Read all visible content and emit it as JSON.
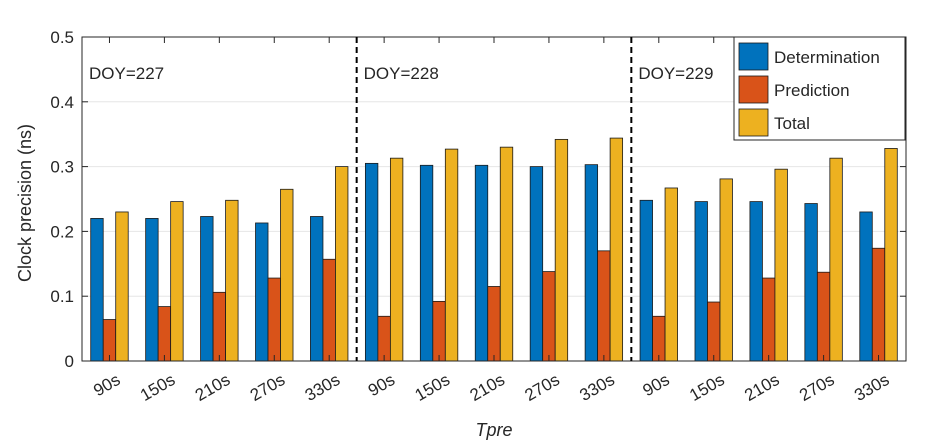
{
  "chart_data": {
    "type": "bar",
    "xlabel": "Tpre",
    "ylabel": "Clock precision (ns)",
    "ylim": [
      0,
      0.5
    ],
    "yticks": [
      "0",
      "0.1",
      "0.2",
      "0.3",
      "0.4",
      "0.5"
    ],
    "categories": [
      "90s",
      "150s",
      "210s",
      "270s",
      "330s",
      "90s",
      "150s",
      "210s",
      "270s",
      "330s",
      "90s",
      "150s",
      "210s",
      "270s",
      "330s"
    ],
    "groups": [
      {
        "label": "DOY=227"
      },
      {
        "label": "DOY=228"
      },
      {
        "label": "DOY=229"
      }
    ],
    "series": [
      {
        "name": "Determination",
        "color": "#0072BD",
        "values": [
          0.22,
          0.22,
          0.223,
          0.213,
          0.223,
          0.305,
          0.302,
          0.302,
          0.3,
          0.303,
          0.248,
          0.246,
          0.246,
          0.243,
          0.23
        ]
      },
      {
        "name": "Prediction",
        "color": "#D95319",
        "values": [
          0.064,
          0.084,
          0.106,
          0.128,
          0.157,
          0.069,
          0.092,
          0.115,
          0.138,
          0.17,
          0.069,
          0.091,
          0.128,
          0.137,
          0.174
        ]
      },
      {
        "name": "Total",
        "color": "#EDB120",
        "values": [
          0.23,
          0.246,
          0.248,
          0.265,
          0.3,
          0.313,
          0.327,
          0.33,
          0.342,
          0.344,
          0.267,
          0.281,
          0.296,
          0.313,
          0.328
        ]
      }
    ],
    "grid": true,
    "legend_position": "top-right"
  }
}
